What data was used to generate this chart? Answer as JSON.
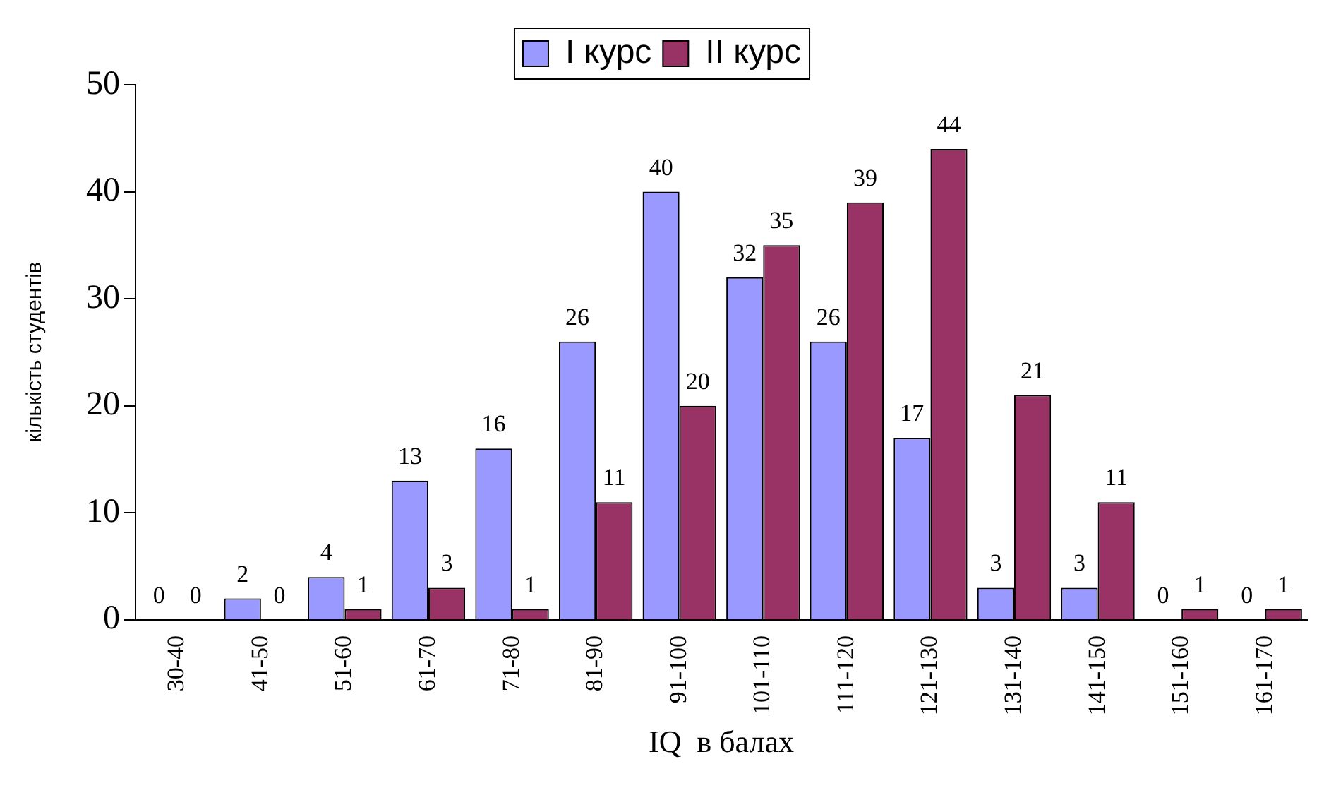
{
  "chart_data": {
    "type": "bar",
    "xlabel": "IQ  в балах",
    "ylabel": "кількість студентів",
    "categories": [
      "30-40",
      "41-50",
      "51-60",
      "61-70",
      "71-80",
      "81-90",
      "91-100",
      "101-110",
      "111-120",
      "121-130",
      "131-140",
      "141-150",
      "151-160",
      "161-170"
    ],
    "series": [
      {
        "name": "I курс",
        "color": "#9999ff",
        "values": [
          0,
          2,
          4,
          13,
          16,
          26,
          40,
          32,
          26,
          17,
          3,
          3,
          0,
          0
        ]
      },
      {
        "name": "II курс",
        "color": "#993366",
        "values": [
          0,
          0,
          1,
          3,
          1,
          11,
          20,
          35,
          39,
          44,
          21,
          11,
          1,
          1
        ]
      }
    ],
    "ylim": [
      0,
      50
    ],
    "yticks": [
      0,
      10,
      20,
      30,
      40,
      50
    ],
    "legend": "top",
    "data_labels": true
  }
}
